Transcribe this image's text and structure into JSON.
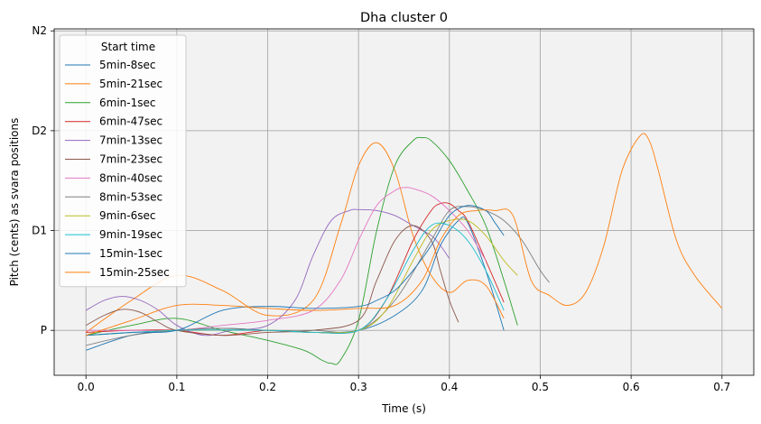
{
  "chart_data": {
    "type": "line",
    "title": "Dha cluster 0",
    "xlabel": "Time (s)",
    "ylabel": "Pitch (cents) as svara positions",
    "xlim": [
      -0.035,
      0.735
    ],
    "ylim": [
      -0.45,
      3.02
    ],
    "xticks": [
      0.0,
      0.1,
      0.2,
      0.3,
      0.4,
      0.5,
      0.6,
      0.7
    ],
    "xtick_labels": [
      "0.0",
      "0.1",
      "0.2",
      "0.3",
      "0.4",
      "0.5",
      "0.6",
      "0.7"
    ],
    "yticks": [
      0,
      1,
      2,
      3
    ],
    "ytick_labels": [
      "P",
      "D1",
      "D2",
      "N2"
    ],
    "grid": true,
    "legend_title": "Start time",
    "legend_position": "upper-left",
    "series": [
      {
        "name": "5min-8sec",
        "color": "#1f77b4",
        "x": [
          0.0,
          0.05,
          0.1,
          0.15,
          0.2,
          0.25,
          0.3,
          0.34,
          0.37,
          0.39,
          0.41,
          0.42,
          0.44,
          0.46
        ],
        "y": [
          -0.2,
          -0.05,
          0.0,
          0.02,
          0.0,
          -0.02,
          0.0,
          0.15,
          0.4,
          0.85,
          1.1,
          1.08,
          0.6,
          0.0
        ]
      },
      {
        "name": "5min-21sec",
        "color": "#ff7f0e",
        "x": [
          0.0,
          0.05,
          0.1,
          0.15,
          0.2,
          0.25,
          0.28,
          0.3,
          0.32,
          0.34,
          0.36,
          0.38,
          0.4,
          0.42,
          0.44,
          0.46
        ],
        "y": [
          -0.02,
          0.3,
          0.55,
          0.4,
          0.15,
          0.3,
          1.05,
          1.65,
          1.88,
          1.6,
          0.95,
          0.55,
          0.38,
          0.5,
          0.45,
          0.12
        ]
      },
      {
        "name": "6min-1sec",
        "color": "#2ca02c",
        "x": [
          0.0,
          0.05,
          0.1,
          0.15,
          0.2,
          0.24,
          0.26,
          0.27,
          0.28,
          0.3,
          0.32,
          0.34,
          0.36,
          0.37,
          0.38,
          0.4,
          0.42,
          0.44,
          0.46,
          0.47,
          0.475
        ],
        "y": [
          -0.05,
          0.05,
          0.12,
          0.0,
          -0.1,
          -0.2,
          -0.3,
          -0.33,
          -0.3,
          0.1,
          1.0,
          1.65,
          1.9,
          1.93,
          1.9,
          1.7,
          1.4,
          1.05,
          0.5,
          0.2,
          0.05
        ]
      },
      {
        "name": "6min-47sec",
        "color": "#d62728",
        "x": [
          0.0,
          0.05,
          0.1,
          0.15,
          0.2,
          0.25,
          0.3,
          0.33,
          0.36,
          0.38,
          0.39,
          0.4,
          0.41,
          0.42,
          0.44,
          0.46
        ],
        "y": [
          -0.02,
          0.0,
          0.0,
          -0.05,
          0.0,
          -0.02,
          0.0,
          0.3,
          0.9,
          1.2,
          1.27,
          1.27,
          1.2,
          1.1,
          0.7,
          0.28
        ]
      },
      {
        "name": "7min-13sec",
        "color": "#9467bd",
        "x": [
          0.0,
          0.02,
          0.04,
          0.06,
          0.08,
          0.1,
          0.13,
          0.16,
          0.2,
          0.23,
          0.25,
          0.27,
          0.29,
          0.3,
          0.32,
          0.34,
          0.36,
          0.38,
          0.39,
          0.4
        ],
        "y": [
          0.2,
          0.3,
          0.34,
          0.3,
          0.2,
          0.05,
          -0.05,
          0.0,
          0.05,
          0.3,
          0.75,
          1.1,
          1.2,
          1.21,
          1.2,
          1.15,
          1.05,
          0.95,
          0.85,
          0.72
        ]
      },
      {
        "name": "7min-23sec",
        "color": "#8c564b",
        "x": [
          0.0,
          0.02,
          0.04,
          0.06,
          0.08,
          0.1,
          0.15,
          0.2,
          0.25,
          0.3,
          0.32,
          0.34,
          0.36,
          0.38,
          0.39,
          0.4,
          0.41
        ],
        "y": [
          0.05,
          0.15,
          0.21,
          0.18,
          0.08,
          0.0,
          -0.05,
          -0.02,
          0.0,
          0.1,
          0.5,
          0.9,
          1.05,
          0.9,
          0.6,
          0.3,
          0.08
        ]
      },
      {
        "name": "8min-40sec",
        "color": "#e377c2",
        "x": [
          0.0,
          0.05,
          0.1,
          0.15,
          0.2,
          0.25,
          0.28,
          0.3,
          0.32,
          0.34,
          0.35,
          0.36,
          0.38,
          0.4,
          0.42,
          0.44
        ],
        "y": [
          0.0,
          0.0,
          0.0,
          0.05,
          0.1,
          0.2,
          0.5,
          0.9,
          1.25,
          1.4,
          1.43,
          1.42,
          1.35,
          1.2,
          1.0,
          0.7
        ]
      },
      {
        "name": "8min-53sec",
        "color": "#7f7f7f",
        "x": [
          0.0,
          0.05,
          0.1,
          0.15,
          0.2,
          0.25,
          0.3,
          0.34,
          0.38,
          0.4,
          0.42,
          0.44,
          0.46,
          0.48,
          0.5,
          0.51
        ],
        "y": [
          -0.15,
          -0.05,
          0.0,
          0.02,
          0.0,
          0.0,
          0.0,
          0.3,
          0.9,
          1.2,
          1.24,
          1.2,
          1.1,
          0.9,
          0.6,
          0.48
        ]
      },
      {
        "name": "9min-6sec",
        "color": "#bcbd22",
        "x": [
          0.0,
          0.1,
          0.2,
          0.25,
          0.3,
          0.33,
          0.36,
          0.38,
          0.4,
          0.42,
          0.44,
          0.46,
          0.475
        ],
        "y": [
          -0.05,
          0.0,
          0.0,
          -0.02,
          0.0,
          0.2,
          0.7,
          1.0,
          1.1,
          1.1,
          0.95,
          0.7,
          0.55
        ]
      },
      {
        "name": "9min-19sec",
        "color": "#17becf",
        "x": [
          0.0,
          0.1,
          0.2,
          0.25,
          0.3,
          0.33,
          0.36,
          0.38,
          0.4,
          0.42,
          0.44,
          0.46
        ],
        "y": [
          -0.05,
          0.0,
          0.0,
          -0.02,
          0.0,
          0.3,
          0.8,
          1.05,
          1.05,
          0.9,
          0.6,
          0.2
        ]
      },
      {
        "name": "15min-1sec",
        "color": "#1f77b4",
        "x": [
          0.0,
          0.05,
          0.1,
          0.15,
          0.2,
          0.25,
          0.3,
          0.32,
          0.34,
          0.36,
          0.38,
          0.4,
          0.42,
          0.44,
          0.45,
          0.46
        ],
        "y": [
          -0.05,
          -0.02,
          0.0,
          0.2,
          0.24,
          0.22,
          0.24,
          0.3,
          0.4,
          0.6,
          0.85,
          1.15,
          1.25,
          1.2,
          1.08,
          0.95
        ]
      },
      {
        "name": "15min-25sec",
        "color": "#ff7f0e",
        "x": [
          0.0,
          0.05,
          0.1,
          0.15,
          0.2,
          0.25,
          0.3,
          0.34,
          0.37,
          0.39,
          0.41,
          0.43,
          0.45,
          0.47,
          0.49,
          0.51,
          0.53,
          0.55,
          0.57,
          0.59,
          0.61,
          0.62,
          0.63,
          0.65,
          0.67,
          0.7
        ],
        "y": [
          -0.05,
          0.1,
          0.25,
          0.25,
          0.22,
          0.2,
          0.22,
          0.25,
          0.5,
          0.9,
          1.15,
          1.2,
          1.2,
          1.15,
          0.5,
          0.35,
          0.25,
          0.38,
          0.85,
          1.6,
          1.95,
          1.9,
          1.6,
          0.9,
          0.55,
          0.22
        ]
      }
    ]
  }
}
